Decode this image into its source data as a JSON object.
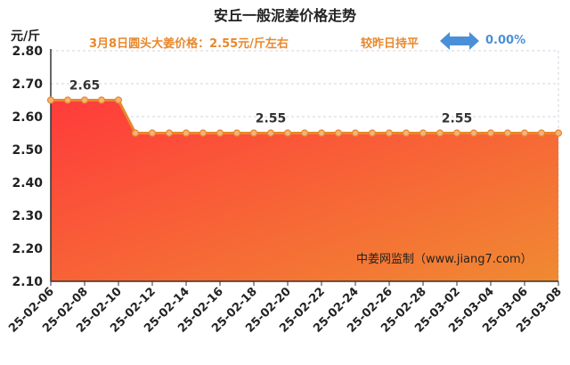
{
  "header": {
    "title": "安丘一般泥姜价格走势",
    "unit": "元/斤",
    "subtitle": "3月8日圆头大姜价格：2.55元/斤左右",
    "compare_label": "较昨日持平",
    "change_value": "0.00%",
    "watermark": "中姜网监制（www.jiang7.com）"
  },
  "colors": {
    "area_top": "#ff3b3b",
    "area_bottom": "#f08a32",
    "line": "#e8882c",
    "marker_fill": "#f3b37a",
    "subtitle": "#e8882c",
    "change": "#4a90d9"
  },
  "icons": {
    "change_indicator": "double-arrow-icon"
  },
  "chart_data": {
    "type": "area",
    "title": "安丘一般泥姜价格走势",
    "ylabel": "元/斤",
    "ylim": [
      2.1,
      2.8
    ],
    "yticks": [
      "2.10",
      "2.20",
      "2.30",
      "2.40",
      "2.50",
      "2.60",
      "2.70",
      "2.80"
    ],
    "grid": true,
    "x": [
      "25-02-06",
      "25-02-07",
      "25-02-08",
      "25-02-09",
      "25-02-10",
      "25-02-11",
      "25-02-12",
      "25-02-13",
      "25-02-14",
      "25-02-15",
      "25-02-16",
      "25-02-17",
      "25-02-18",
      "25-02-19",
      "25-02-20",
      "25-02-21",
      "25-02-22",
      "25-02-23",
      "25-02-24",
      "25-02-25",
      "25-02-26",
      "25-02-27",
      "25-02-28",
      "25-03-01",
      "25-03-02",
      "25-03-03",
      "25-03-04",
      "25-03-05",
      "25-03-06",
      "25-03-07",
      "25-03-08"
    ],
    "xticks": [
      "25-02-06",
      "25-02-08",
      "25-02-10",
      "25-02-12",
      "25-02-14",
      "25-02-16",
      "25-02-18",
      "25-02-20",
      "25-02-22",
      "25-02-24",
      "25-02-26",
      "25-02-28",
      "25-03-02",
      "25-03-04",
      "25-03-06",
      "25-03-08"
    ],
    "values": [
      2.65,
      2.65,
      2.65,
      2.65,
      2.65,
      2.55,
      2.55,
      2.55,
      2.55,
      2.55,
      2.55,
      2.55,
      2.55,
      2.55,
      2.55,
      2.55,
      2.55,
      2.55,
      2.55,
      2.55,
      2.55,
      2.55,
      2.55,
      2.55,
      2.55,
      2.55,
      2.55,
      2.55,
      2.55,
      2.55,
      2.55
    ],
    "data_labels": [
      {
        "x": "25-02-08",
        "text": "2.65"
      },
      {
        "x": "25-02-19",
        "text": "2.55"
      },
      {
        "x": "25-03-02",
        "text": "2.55"
      }
    ]
  }
}
